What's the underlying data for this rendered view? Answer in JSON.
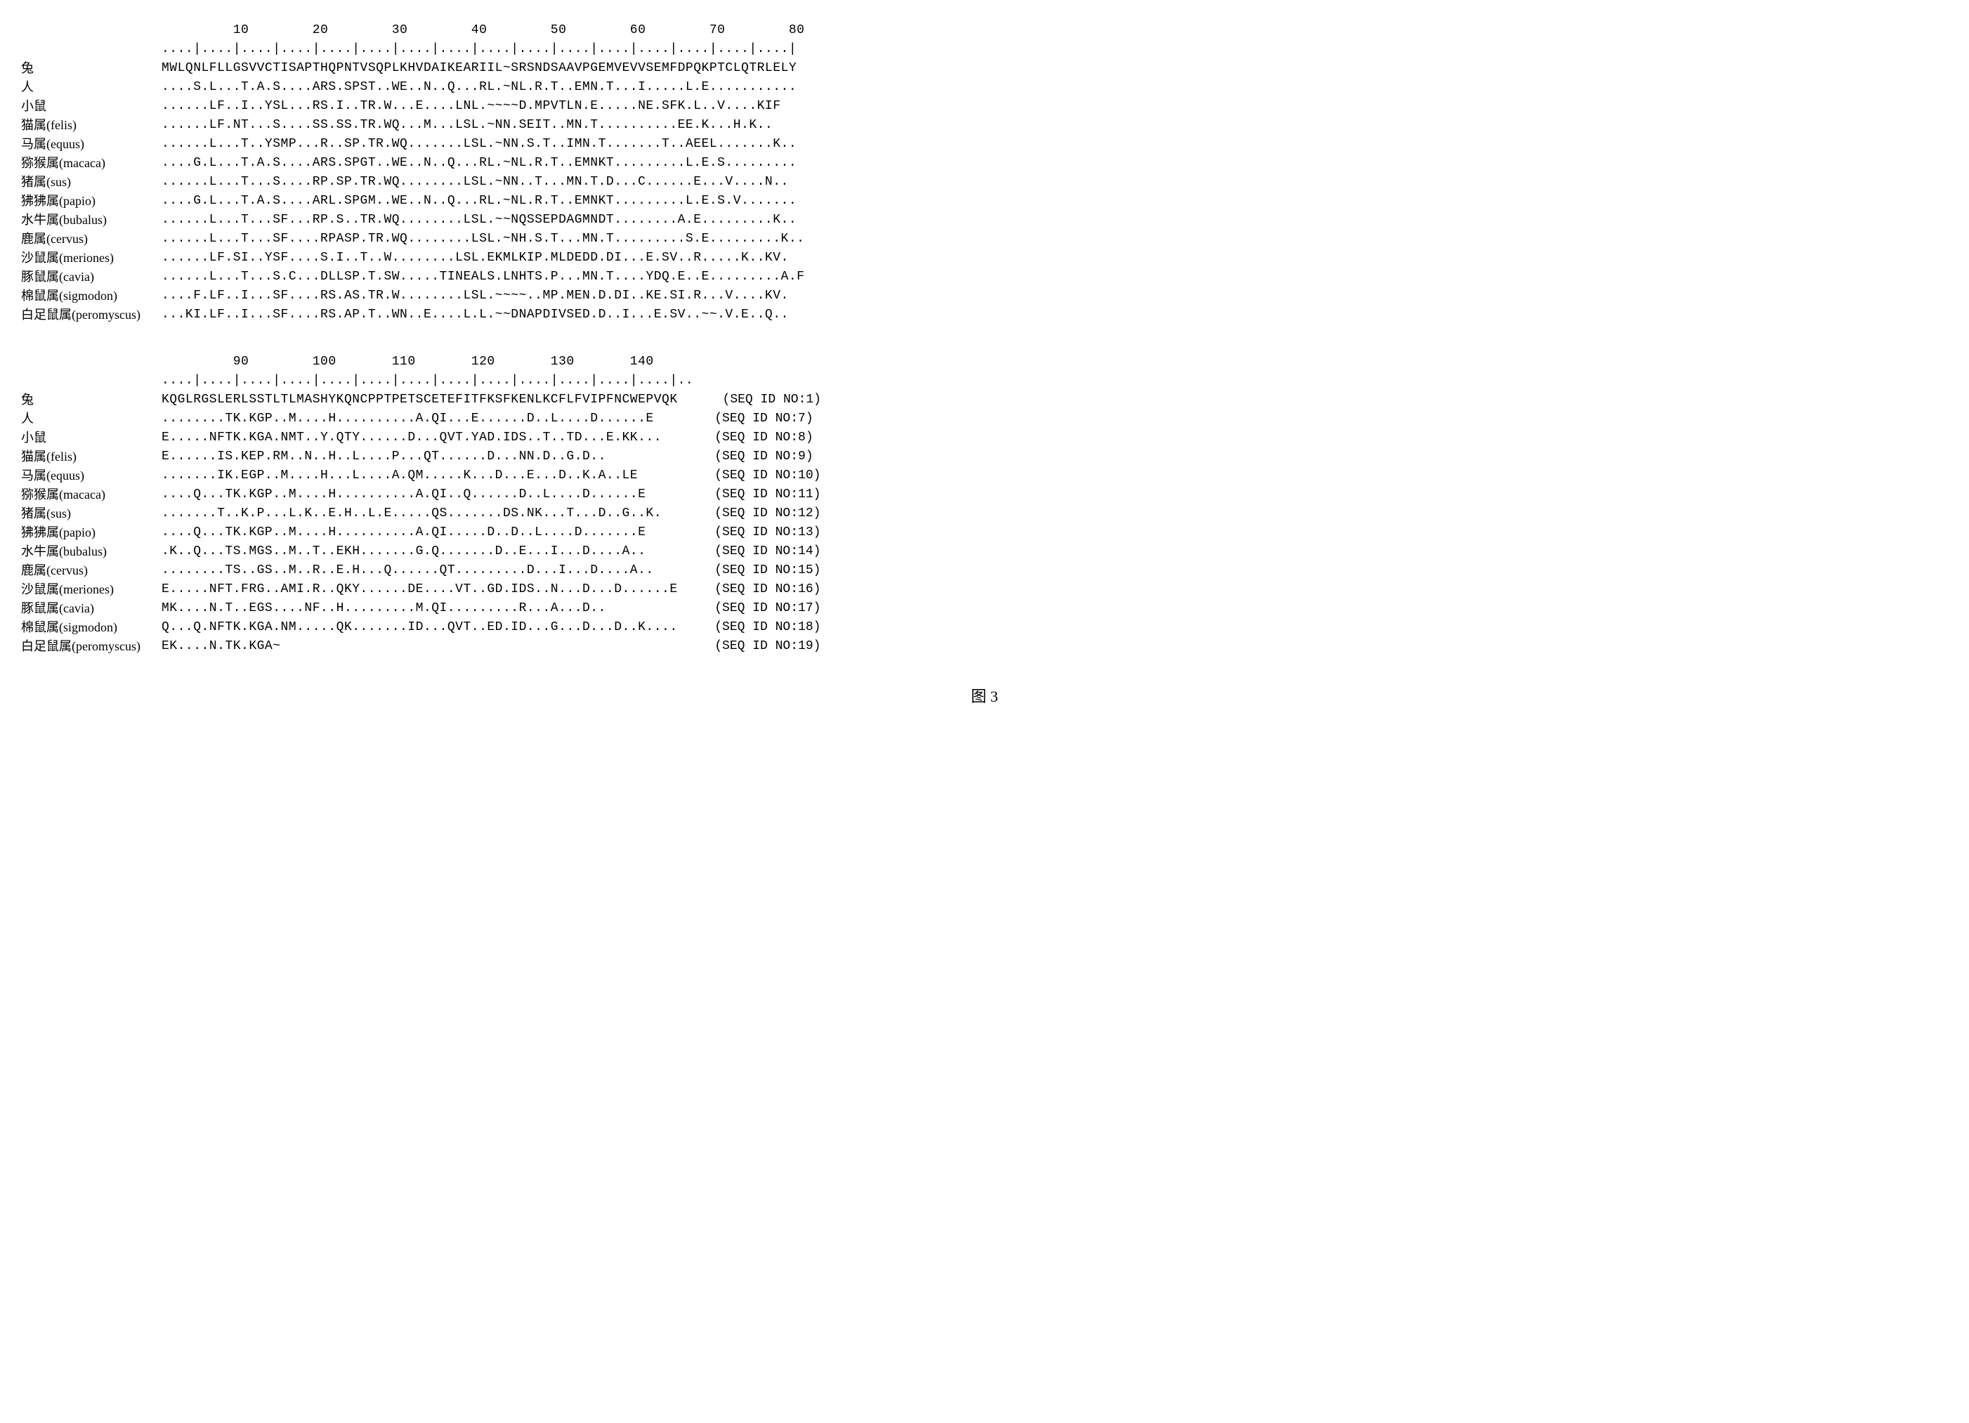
{
  "blocks": [
    {
      "ruler_numbers": "         10        20        30        40        50        60        70        80",
      "ruler_ticks": "....|....|....|....|....|....|....|....|....|....|....|....|....|....|....|....|",
      "rows": [
        {
          "label": "兔",
          "seq": "MWLQNLFLLGSVVCTISAPTHQPNTVSQPLKHVDAIKEARIIL~SRSNDSAAVPGEMVEVVSEMFDPQKPTCLQTRLELY",
          "seqid": ""
        },
        {
          "label": "人",
          "seq": "....S.L...T.A.S....ARS.SPST..WE..N..Q...RL.~NL.R.T..EMN.T...I.....L.E...........",
          "seqid": ""
        },
        {
          "label": "小鼠",
          "seq": "......LF..I..YSL...RS.I..TR.W...E....LNL.~~~~D.MPVTLN.E.....NE.SFK.L..V....KIF",
          "seqid": ""
        },
        {
          "label": "猫属(felis)",
          "seq": "......LF.NT...S....SS.SS.TR.WQ...M...LSL.~NN.SEIT..MN.T..........EE.K...H.K..",
          "seqid": ""
        },
        {
          "label": "马属(equus)",
          "seq": "......L...T..YSMP...R..SP.TR.WQ.......LSL.~NN.S.T..IMN.T.......T..AEEL.......K..",
          "seqid": ""
        },
        {
          "label": "猕猴属(macaca)",
          "seq": "....G.L...T.A.S....ARS.SPGT..WE..N..Q...RL.~NL.R.T..EMNKT.........L.E.S.........",
          "seqid": ""
        },
        {
          "label": "猪属(sus)",
          "seq": "......L...T...S....RP.SP.TR.WQ........LSL.~NN..T...MN.T.D...C......E...V....N..",
          "seqid": ""
        },
        {
          "label": "狒狒属(papio)",
          "seq": "....G.L...T.A.S....ARL.SPGM..WE..N..Q...RL.~NL.R.T..EMNKT.........L.E.S.V.......",
          "seqid": ""
        },
        {
          "label": "水牛属(bubalus)",
          "seq": "......L...T...SF...RP.S..TR.WQ........LSL.~~NQSSEPDAGMNDT........A.E.........K..",
          "seqid": ""
        },
        {
          "label": "鹿属(cervus)",
          "seq": "......L...T...SF....RPASP.TR.WQ........LSL.~NH.S.T...MN.T.........S.E.........K..",
          "seqid": ""
        },
        {
          "label": "沙鼠属(meriones)",
          "seq": "......LF.SI..YSF....S.I..T..W........LSL.EKMLKIP.MLDEDD.DI...E.SV..R.....K..KV.",
          "seqid": ""
        },
        {
          "label": "豚鼠属(cavia)",
          "seq": "......L...T...S.C...DLLSP.T.SW.....TINEALS.LNHTS.P...MN.T....YDQ.E..E.........A.F",
          "seqid": ""
        },
        {
          "label": "棉鼠属(sigmodon)",
          "seq": "....F.LF..I...SF....RS.AS.TR.W........LSL.~~~~..MP.MEN.D.DI..KE.SI.R...V....KV.",
          "seqid": ""
        },
        {
          "label": "白足鼠属(peromyscus)",
          "seq": "...KI.LF..I...SF....RS.AP.T..WN..E....L.L.~~DNAPDIVSED.D..I...E.SV..~~.V.E..Q..",
          "seqid": ""
        }
      ]
    },
    {
      "ruler_numbers": "         90        100       110       120       130       140",
      "ruler_ticks": "....|....|....|....|....|....|....|....|....|....|....|....|....|..",
      "rows": [
        {
          "label": "兔",
          "seq": "KQGLRGSLERLSSTLTLMASHYKQNCPPTPETSCETEFITFKSFKENLKCFLFVIPFNCWEPVQK   ",
          "seqid": "(SEQ ID NO:1)"
        },
        {
          "label": "人",
          "seq": "........TK.KGP..M....H..........A.QI...E......D..L....D......E     ",
          "seqid": "(SEQ ID NO:7)"
        },
        {
          "label": "小鼠",
          "seq": "E.....NFTK.KGA.NMT..Y.QTY......D...QVT.YAD.IDS..T..TD...E.KK...    ",
          "seqid": "(SEQ ID NO:8)"
        },
        {
          "label": "猫属(felis)",
          "seq": "E......IS.KEP.RM..N..H..L....P...QT......D...NN.D..G.D..           ",
          "seqid": "(SEQ ID NO:9)"
        },
        {
          "label": "马属(equus)",
          "seq": ".......IK.EGP..M....H...L....A.QM.....K...D...E...D..K.A..LE       ",
          "seqid": "(SEQ ID NO:10)"
        },
        {
          "label": "猕猴属(macaca)",
          "seq": "....Q...TK.KGP..M....H..........A.QI..Q......D..L....D......E      ",
          "seqid": "(SEQ ID NO:11)"
        },
        {
          "label": "猪属(sus)",
          "seq": ".......T..K.P...L.K..E.H..L.E.....QS.......DS.NK...T...D..G..K.    ",
          "seqid": "(SEQ ID NO:12)"
        },
        {
          "label": "狒狒属(papio)",
          "seq": "....Q...TK.KGP..M....H..........A.QI.....D..D..L....D.......E      ",
          "seqid": "(SEQ ID NO:13)"
        },
        {
          "label": "水牛属(bubalus)",
          "seq": ".K..Q...TS.MGS..M..T..EKH.......G.Q.......D..E...I...D....A..      ",
          "seqid": "(SEQ ID NO:14)"
        },
        {
          "label": "鹿属(cervus)",
          "seq": "........TS..GS..M..R..E.H...Q......QT.........D...I...D....A..     ",
          "seqid": "(SEQ ID NO:15)"
        },
        {
          "label": "沙鼠属(meriones)",
          "seq": "E.....NFT.FRG..AMI.R..QKY......DE....VT..GD.IDS..N...D...D......E  ",
          "seqid": "(SEQ ID NO:16)"
        },
        {
          "label": "豚鼠属(cavia)",
          "seq": "MK....N.T..EGS....NF..H.........M.QI.........R...A...D..           ",
          "seqid": "(SEQ ID NO:17)"
        },
        {
          "label": "棉鼠属(sigmodon)",
          "seq": "Q...Q.NFTK.KGA.NM.....QK.......ID...QVT..ED.ID...G...D...D..K....  ",
          "seqid": "(SEQ ID NO:18)"
        },
        {
          "label": "白足鼠属(peromyscus)",
          "seq": "EK....N.TK.KGA~                                                    ",
          "seqid": "(SEQ ID NO:19)"
        }
      ]
    }
  ],
  "caption": "图 3"
}
